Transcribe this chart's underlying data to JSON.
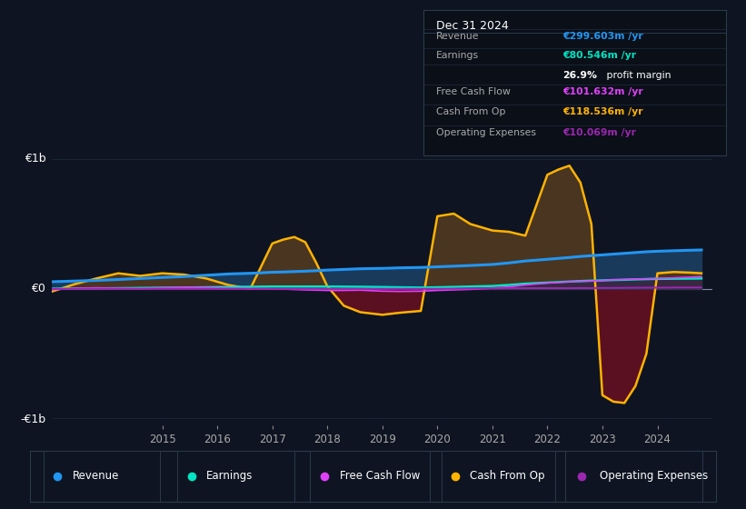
{
  "background_color": "#0e1421",
  "plot_bg_color": "#0e1421",
  "revenue_color": "#2196f3",
  "revenue_fill": "#1a3a5c",
  "earnings_color": "#00e5c3",
  "earnings_fill": "#00564a",
  "free_cash_flow_color": "#e040fb",
  "cash_from_op_color": "#ffb300",
  "cash_from_op_fill_pos": "#4a3520",
  "cash_from_op_fill_neg": "#5a1020",
  "operating_expenses_color": "#9c27b0",
  "legend_border_color": "#2a3a4a",
  "grid_color": "#1e2d3d",
  "zero_line_color": "#8888aa",
  "info_box_bg": "#0a0f18",
  "info_box_border": "#2a3a4a",
  "years_data": [
    2013.0,
    2013.4,
    2013.8,
    2014.2,
    2014.6,
    2015.0,
    2015.4,
    2015.8,
    2016.2,
    2016.6,
    2017.0,
    2017.2,
    2017.4,
    2017.6,
    2017.8,
    2018.0,
    2018.3,
    2018.6,
    2019.0,
    2019.3,
    2019.7,
    2020.0,
    2020.3,
    2020.6,
    2021.0,
    2021.3,
    2021.6,
    2022.0,
    2022.2,
    2022.4,
    2022.6,
    2022.8,
    2023.0,
    2023.2,
    2023.4,
    2023.6,
    2023.8,
    2024.0,
    2024.3,
    2024.6,
    2024.8
  ],
  "revenue": [
    55,
    60,
    65,
    72,
    80,
    88,
    95,
    105,
    115,
    120,
    128,
    130,
    133,
    136,
    140,
    145,
    150,
    155,
    158,
    162,
    165,
    170,
    175,
    180,
    188,
    200,
    215,
    228,
    235,
    242,
    250,
    256,
    262,
    268,
    274,
    280,
    286,
    290,
    294,
    298,
    300
  ],
  "earnings": [
    2,
    3,
    4,
    5,
    7,
    9,
    10,
    12,
    14,
    16,
    18,
    18,
    18,
    18,
    18,
    18,
    17,
    16,
    14,
    12,
    10,
    12,
    15,
    18,
    22,
    30,
    40,
    48,
    52,
    56,
    60,
    63,
    65,
    68,
    70,
    73,
    75,
    77,
    78,
    79,
    80
  ],
  "free_cash_flow": [
    -8,
    5,
    8,
    5,
    2,
    8,
    12,
    10,
    5,
    2,
    0,
    -2,
    -5,
    -8,
    -10,
    -12,
    -12,
    -10,
    -18,
    -20,
    -18,
    -12,
    -8,
    -4,
    5,
    15,
    30,
    45,
    50,
    55,
    58,
    60,
    65,
    70,
    72,
    75,
    78,
    80,
    85,
    90,
    95
  ],
  "cash_from_op": [
    -20,
    35,
    80,
    120,
    100,
    120,
    110,
    80,
    30,
    0,
    350,
    380,
    400,
    360,
    200,
    20,
    -130,
    -180,
    -200,
    -185,
    -170,
    560,
    580,
    500,
    450,
    440,
    410,
    880,
    920,
    950,
    820,
    500,
    -820,
    -870,
    -880,
    -750,
    -500,
    120,
    130,
    125,
    120
  ],
  "operating_expenses": [
    0,
    0,
    0,
    0,
    0,
    0,
    0,
    0,
    0,
    0,
    0,
    0,
    0,
    0,
    0,
    0,
    0,
    0,
    0,
    0,
    0,
    0,
    1,
    2,
    3,
    4,
    5,
    5,
    5,
    5,
    6,
    6,
    7,
    7,
    8,
    8,
    9,
    9,
    10,
    10,
    10
  ],
  "xtick_years": [
    2015,
    2016,
    2017,
    2018,
    2019,
    2020,
    2021,
    2022,
    2023,
    2024
  ],
  "xlim": [
    2013.0,
    2025.0
  ],
  "ylim": [
    -1050,
    1050
  ]
}
